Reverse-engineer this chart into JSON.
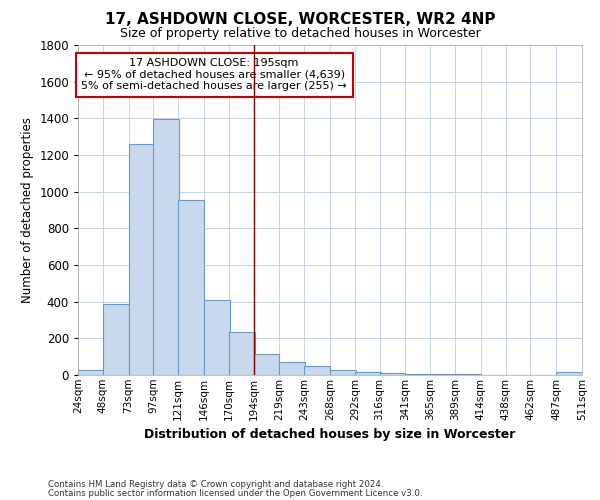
{
  "title": "17, ASHDOWN CLOSE, WORCESTER, WR2 4NP",
  "subtitle": "Size of property relative to detached houses in Worcester",
  "xlabel": "Distribution of detached houses by size in Worcester",
  "ylabel": "Number of detached properties",
  "footnote1": "Contains HM Land Registry data © Crown copyright and database right 2024.",
  "footnote2": "Contains public sector information licensed under the Open Government Licence v3.0.",
  "bar_color": "#c8d8ed",
  "bar_edge_color": "#6699cc",
  "grid_color": "#c5d5e5",
  "vline_color": "#7a0000",
  "annotation_box_color": "#cc0000",
  "background_color": "#ffffff",
  "bins_left": [
    24,
    48,
    73,
    97,
    121,
    146,
    170,
    194,
    219,
    243,
    268,
    292,
    316,
    341,
    365,
    389,
    414,
    438,
    462,
    487
  ],
  "bin_width": 25,
  "bar_heights": [
    25,
    390,
    1260,
    1395,
    955,
    410,
    235,
    115,
    70,
    50,
    25,
    18,
    10,
    8,
    5,
    3,
    0,
    0,
    0,
    15
  ],
  "vline_x": 194,
  "ylim": [
    0,
    1800
  ],
  "yticks": [
    0,
    200,
    400,
    600,
    800,
    1000,
    1200,
    1400,
    1600,
    1800
  ],
  "xtick_labels": [
    "24sqm",
    "48sqm",
    "73sqm",
    "97sqm",
    "121sqm",
    "146sqm",
    "170sqm",
    "194sqm",
    "219sqm",
    "243sqm",
    "268sqm",
    "292sqm",
    "316sqm",
    "341sqm",
    "365sqm",
    "389sqm",
    "414sqm",
    "438sqm",
    "462sqm",
    "487sqm",
    "511sqm"
  ],
  "annotation_title": "17 ASHDOWN CLOSE: 195sqm",
  "annotation_line2": "← 95% of detached houses are smaller (4,639)",
  "annotation_line3": "5% of semi-detached houses are larger (255) →"
}
